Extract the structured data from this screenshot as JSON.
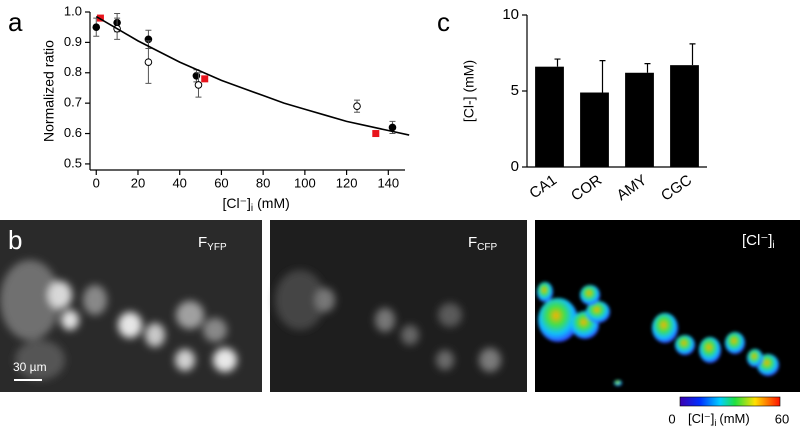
{
  "panels": {
    "a": "a",
    "b": "b",
    "c": "c"
  },
  "chart_data": [
    {
      "type": "scatter",
      "y_label": "Normalized ratio",
      "x_label": "[Cl⁻]",
      "x_label_sub": "i",
      "x_label_unit": "(mM)",
      "xlim": [
        -3,
        148
      ],
      "ylim": [
        0.48,
        1.0
      ],
      "xticks": [
        0,
        20,
        40,
        60,
        80,
        100,
        120,
        140
      ],
      "yticks": [
        0.5,
        0.6,
        0.7,
        0.8,
        0.9,
        {
          "value": 1,
          "label": "1.0"
        }
      ],
      "series": [
        {
          "marker": "filled",
          "color": "#000000",
          "x": [
            0,
            10,
            25,
            48,
            142
          ],
          "values": [
            0.95,
            0.965,
            0.91,
            0.79,
            0.62
          ],
          "errors": [
            0.03,
            0.03,
            0.03,
            0.02,
            0.02
          ]
        },
        {
          "marker": "open",
          "color": "#000000",
          "x": [
            10,
            25,
            49,
            125
          ],
          "values": [
            0.945,
            0.835,
            0.76,
            0.69
          ],
          "errors": [
            0.035,
            0.07,
            0.04,
            0.02
          ]
        },
        {
          "marker": "square",
          "color": "#e8141c",
          "x": [
            2,
            52,
            134
          ],
          "values": [
            0.98,
            0.78,
            0.6
          ]
        },
        {
          "marker": "line",
          "color": "#000000",
          "x": [
            0,
            10,
            20,
            30,
            40,
            50,
            60,
            70,
            80,
            90,
            100,
            110,
            120,
            130,
            140,
            150
          ],
          "values": [
            0.985,
            0.945,
            0.905,
            0.87,
            0.835,
            0.805,
            0.775,
            0.75,
            0.725,
            0.7,
            0.68,
            0.66,
            0.64,
            0.625,
            0.61,
            0.595
          ]
        }
      ]
    },
    {
      "type": "bar",
      "y_label": "[Cl-] (mM)",
      "categories": [
        "CA1",
        "COR",
        "AMY",
        "CGC"
      ],
      "values": [
        6.6,
        4.9,
        6.2,
        6.7
      ],
      "errors": [
        0.5,
        2.1,
        0.6,
        1.4
      ],
      "color": "#000000",
      "ylim": [
        0,
        10
      ],
      "yticks": [
        0,
        5,
        10
      ]
    }
  ],
  "images": [
    {
      "label": "F",
      "label_sub": "YFP",
      "scale_bar": "30 µm"
    },
    {
      "label": "F",
      "label_sub": "CFP"
    },
    {
      "label": "[Cl⁻]",
      "label_sub": "i"
    }
  ],
  "colorbar": {
    "min": 0,
    "max": 60,
    "label": "[Cl⁻]",
    "label_sub": "i",
    "unit": "(mM)"
  }
}
